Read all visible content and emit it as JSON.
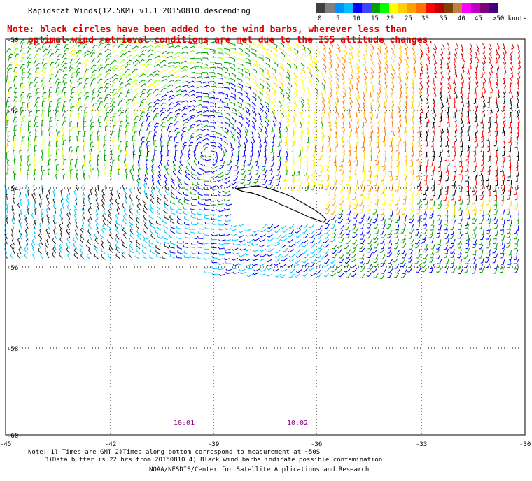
{
  "title": "Rapidscat Winds(12.5KM) v1.1 20150810 descending",
  "note": {
    "line1": "Note: black circles have been added to the wind barbs, wherever less than",
    "line2": "optimal wind retrieval conditions are met due to the ISS altitude changes."
  },
  "legend": {
    "colors": [
      "#404040",
      "#808080",
      "#0090ff",
      "#00c0ff",
      "#0000ff",
      "#4040ff",
      "#00a000",
      "#00ff00",
      "#ffff00",
      "#ffd000",
      "#ffa000",
      "#ff7000",
      "#ff0000",
      "#c00000",
      "#804000",
      "#c08040",
      "#ff00ff",
      "#c000c0",
      "#800080",
      "#400080"
    ],
    "labels": [
      "0",
      "5",
      "10",
      "15",
      "20",
      "25",
      "30",
      "35",
      "40",
      "45",
      ">50 knots"
    ]
  },
  "map": {
    "lat_labels": [
      "-50",
      "-52",
      "-54",
      "-56",
      "-58",
      "-60"
    ],
    "lon_labels": [
      "-45",
      "-42",
      "-39",
      "-36",
      "-33",
      "-30"
    ],
    "times": [
      "10:01",
      "10:02"
    ]
  },
  "footer": {
    "line1": "Note: 1) Times are GMT 2)Times along bottom correspond to measurement at ~50S",
    "line2": "3)Data buffer is 22 hrs from 20150810 4) Black wind barbs indicate possible contamination",
    "line3": "NOAA/NESDIS/Center for Satellite Applications and Research"
  }
}
